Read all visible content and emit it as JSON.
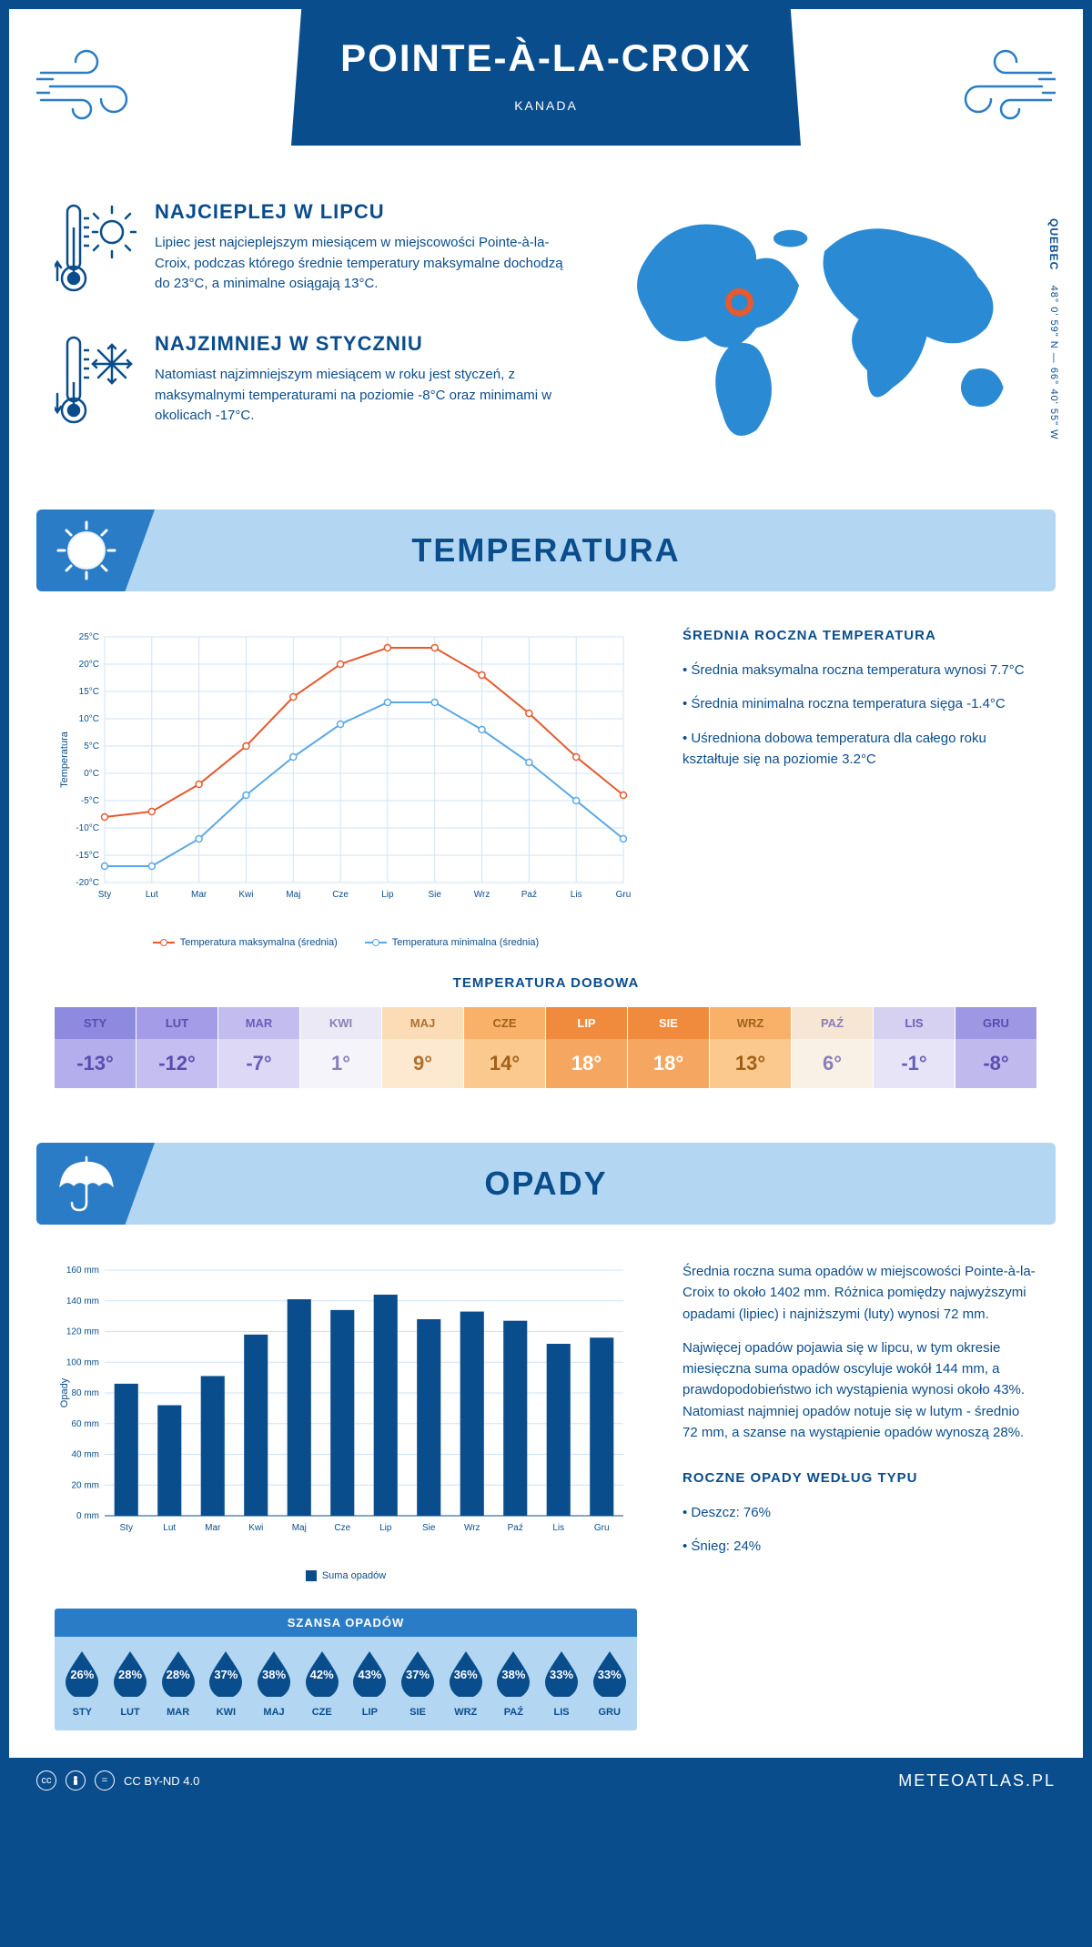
{
  "header": {
    "city": "POINTE-À-LA-CROIX",
    "country": "KANADA"
  },
  "coords": {
    "region": "QUEBEC",
    "lat": "48° 0' 59\" N",
    "lon": "66° 40' 55\" W"
  },
  "intro": {
    "hot": {
      "title": "NAJCIEPLEJ W LIPCU",
      "text": "Lipiec jest najcieplejszym miesiącem w miejscowości Pointe-à-la-Croix, podczas którego średnie temperatury maksymalne dochodzą do 23°C, a minimalne osiągają 13°C."
    },
    "cold": {
      "title": "NAJZIMNIEJ W STYCZNIU",
      "text": "Natomiast najzimniejszym miesiącem w roku jest styczeń, z maksymalnymi temperaturami na poziomie -8°C oraz minimami w okolicach -17°C."
    }
  },
  "sections": {
    "temp_title": "TEMPERATURA",
    "opady_title": "OPADY"
  },
  "temp_chart": {
    "type": "line",
    "months": [
      "Sty",
      "Lut",
      "Mar",
      "Kwi",
      "Maj",
      "Cze",
      "Lip",
      "Sie",
      "Wrz",
      "Paź",
      "Lis",
      "Gru"
    ],
    "y_label": "Temperatura",
    "ylim": [
      -20,
      25
    ],
    "ytick_step": 5,
    "y_suffix": "°C",
    "max_series": {
      "label": "Temperatura maksymalna (średnia)",
      "color": "#e65a2e",
      "values": [
        -8,
        -7,
        -2,
        5,
        14,
        20,
        23,
        23,
        18,
        11,
        3,
        -4
      ]
    },
    "min_series": {
      "label": "Temperatura minimalna (średnia)",
      "color": "#5aa8e6",
      "values": [
        -17,
        -17,
        -12,
        -4,
        3,
        9,
        13,
        13,
        8,
        2,
        -5,
        -12
      ]
    },
    "grid_color": "#cfe3f5"
  },
  "temp_side": {
    "title": "ŚREDNIA ROCZNA TEMPERATURA",
    "items": [
      "Średnia maksymalna roczna temperatura wynosi 7.7°C",
      "Średnia minimalna roczna temperatura sięga -1.4°C",
      "Uśredniona dobowa temperatura dla całego roku kształtuje się na poziomie 3.2°C"
    ]
  },
  "dobowa": {
    "title": "TEMPERATURA DOBOWA",
    "months": [
      "STY",
      "LUT",
      "MAR",
      "KWI",
      "MAJ",
      "CZE",
      "LIP",
      "SIE",
      "WRZ",
      "PAŹ",
      "LIS",
      "GRU"
    ],
    "values": [
      "-13°",
      "-12°",
      "-7°",
      "1°",
      "9°",
      "14°",
      "18°",
      "18°",
      "13°",
      "6°",
      "-1°",
      "-8°"
    ],
    "head_colors": [
      "#8e8ae0",
      "#a49ce6",
      "#c2bdee",
      "#ece9f6",
      "#fbdcb6",
      "#f9b169",
      "#f08a3c",
      "#f08a3c",
      "#f9b169",
      "#f6e6d3",
      "#d6d1f0",
      "#9e97e4"
    ],
    "body_colors": [
      "#b4afec",
      "#c4bff0",
      "#dcd8f5",
      "#f6f4fb",
      "#fde9cf",
      "#fbc98e",
      "#f5a762",
      "#f5a762",
      "#fbc98e",
      "#faf1e6",
      "#e8e4f7",
      "#bfb9ee"
    ],
    "text_colors": [
      "#5a4db0",
      "#5a4db0",
      "#6a5fb8",
      "#8a7fb8",
      "#b07030",
      "#a0601a",
      "#ffffff",
      "#ffffff",
      "#a0601a",
      "#8a7fb8",
      "#6a5fb8",
      "#5a4db0"
    ]
  },
  "opady_chart": {
    "type": "bar",
    "months": [
      "Sty",
      "Lut",
      "Mar",
      "Kwi",
      "Maj",
      "Cze",
      "Lip",
      "Sie",
      "Wrz",
      "Paź",
      "Lis",
      "Gru"
    ],
    "y_label": "Opady",
    "ylim": [
      0,
      160
    ],
    "ytick_step": 20,
    "y_suffix": " mm",
    "values": [
      86,
      72,
      91,
      118,
      141,
      134,
      144,
      128,
      133,
      127,
      112,
      116
    ],
    "bar_color": "#0a4d8c",
    "grid_color": "#cfe3f5",
    "legend": "Suma opadów"
  },
  "opady_side": {
    "p1": "Średnia roczna suma opadów w miejscowości Pointe-à-la-Croix to około 1402 mm. Różnica pomiędzy najwyższymi opadami (lipiec) i najniższymi (luty) wynosi 72 mm.",
    "p2": "Najwięcej opadów pojawia się w lipcu, w tym okresie miesięczna suma opadów oscyluje wokół 144 mm, a prawdopodobieństwo ich wystąpienia wynosi około 43%. Natomiast najmniej opadów notuje się w lutym - średnio 72 mm, a szanse na wystąpienie opadów wynoszą 28%.",
    "type_title": "ROCZNE OPADY WEDŁUG TYPU",
    "types": [
      "Deszcz: 76%",
      "Śnieg: 24%"
    ]
  },
  "szansa": {
    "title": "SZANSA OPADÓW",
    "months": [
      "STY",
      "LUT",
      "MAR",
      "KWI",
      "MAJ",
      "CZE",
      "LIP",
      "SIE",
      "WRZ",
      "PAŹ",
      "LIS",
      "GRU"
    ],
    "pct": [
      "26%",
      "28%",
      "28%",
      "37%",
      "38%",
      "42%",
      "43%",
      "37%",
      "36%",
      "38%",
      "33%",
      "33%"
    ],
    "drop_color": "#0a4d8c"
  },
  "footer": {
    "license": "CC BY-ND 4.0",
    "site": "METEOATLAS.PL"
  }
}
